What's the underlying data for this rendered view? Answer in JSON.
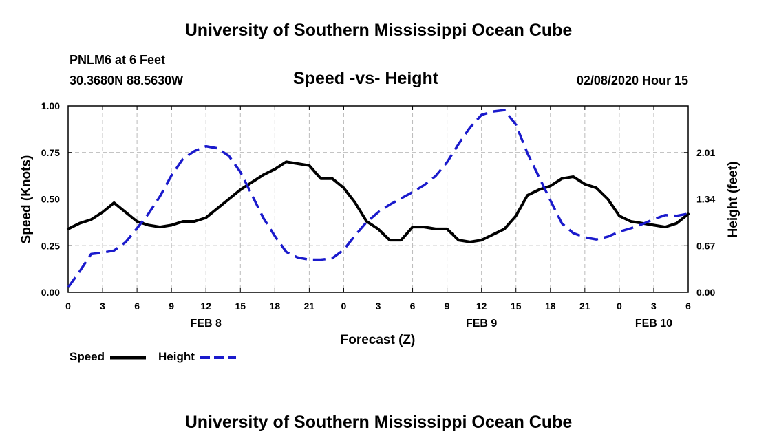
{
  "header": {
    "title": "University of Southern Mississippi Ocean Cube",
    "station": "PNLM6 at 6 Feet",
    "coords": "30.3680N 88.5630W",
    "datetime": "02/08/2020 Hour 15"
  },
  "footer": {
    "title": "University of Southern Mississippi Ocean Cube"
  },
  "legend": {
    "speed_label": "Speed",
    "height_label": "Height"
  },
  "colors": {
    "speed": "#000000",
    "height": "#1a1acc",
    "grid": "#bbbbbb"
  },
  "chart_data": {
    "type": "line",
    "title": "Speed -vs- Height",
    "xlabel": "Forecast (Z)",
    "ylabel": "Speed (Knots)",
    "y2label": "Height (feet)",
    "xlim": [
      0,
      54
    ],
    "ylim": [
      0,
      1
    ],
    "y2lim": [
      0,
      2.68
    ],
    "x_ticks": [
      0,
      3,
      6,
      9,
      12,
      15,
      18,
      21,
      24,
      27,
      30,
      33,
      36,
      39,
      42,
      45,
      48,
      51,
      54
    ],
    "x_tick_labels": [
      "0",
      "3",
      "6",
      "9",
      "12",
      "15",
      "18",
      "21",
      "0",
      "3",
      "6",
      "9",
      "12",
      "15",
      "18",
      "21",
      "0",
      "3",
      "6"
    ],
    "y_ticks": [
      0,
      0.25,
      0.5,
      0.75,
      1.0
    ],
    "y_tick_labels": [
      "0.00",
      "0.25",
      "0.50",
      "0.75",
      "1.00"
    ],
    "y2_ticks": [
      0,
      0.67,
      1.34,
      2.01
    ],
    "y2_tick_labels": [
      "0.00",
      "0.67",
      "1.34",
      "2.01"
    ],
    "date_labels": [
      {
        "x": 12,
        "label": "FEB 8"
      },
      {
        "x": 36,
        "label": "FEB 9"
      },
      {
        "x": 51,
        "label": "FEB 10"
      }
    ],
    "series": [
      {
        "name": "Speed",
        "axis": "left",
        "style": "solid",
        "x": [
          0,
          1,
          2,
          3,
          4,
          5,
          6,
          7,
          8,
          9,
          10,
          11,
          12,
          13,
          14,
          15,
          16,
          17,
          18,
          19,
          20,
          21,
          22,
          23,
          24,
          25,
          26,
          27,
          28,
          29,
          30,
          31,
          32,
          33,
          34,
          35,
          36,
          37,
          38,
          39,
          40,
          41,
          42,
          43,
          44,
          45,
          46,
          47,
          48,
          49,
          50,
          51,
          52,
          53,
          54
        ],
        "values": [
          0.34,
          0.37,
          0.39,
          0.43,
          0.48,
          0.43,
          0.38,
          0.36,
          0.35,
          0.36,
          0.38,
          0.38,
          0.4,
          0.45,
          0.5,
          0.55,
          0.59,
          0.63,
          0.66,
          0.7,
          0.69,
          0.68,
          0.61,
          0.61,
          0.56,
          0.48,
          0.38,
          0.34,
          0.28,
          0.28,
          0.35,
          0.35,
          0.34,
          0.34,
          0.28,
          0.27,
          0.28,
          0.31,
          0.34,
          0.41,
          0.52,
          0.55,
          0.57,
          0.61,
          0.62,
          0.58,
          0.56,
          0.5,
          0.41,
          0.38,
          0.37,
          0.36,
          0.35,
          0.37,
          0.42
        ]
      },
      {
        "name": "Height",
        "axis": "right",
        "style": "dashed",
        "x": [
          0,
          1,
          2,
          3,
          4,
          5,
          6,
          7,
          8,
          9,
          10,
          11,
          12,
          13,
          14,
          15,
          16,
          17,
          18,
          19,
          20,
          21,
          22,
          23,
          24,
          25,
          26,
          27,
          28,
          29,
          30,
          31,
          32,
          33,
          34,
          35,
          36,
          37,
          38,
          39,
          40,
          41,
          42,
          43,
          44,
          45,
          46,
          47,
          48,
          49,
          50,
          51,
          52,
          53,
          54
        ],
        "values": [
          0.07,
          0.3,
          0.55,
          0.57,
          0.6,
          0.72,
          0.92,
          1.13,
          1.38,
          1.68,
          1.92,
          2.03,
          2.1,
          2.07,
          1.96,
          1.73,
          1.4,
          1.07,
          0.81,
          0.58,
          0.5,
          0.47,
          0.47,
          0.49,
          0.61,
          0.82,
          1.01,
          1.15,
          1.26,
          1.35,
          1.44,
          1.54,
          1.67,
          1.87,
          2.13,
          2.37,
          2.55,
          2.6,
          2.62,
          2.41,
          2.0,
          1.66,
          1.32,
          0.99,
          0.85,
          0.79,
          0.76,
          0.8,
          0.87,
          0.92,
          0.98,
          1.05,
          1.11,
          1.1,
          1.13
        ]
      }
    ]
  }
}
